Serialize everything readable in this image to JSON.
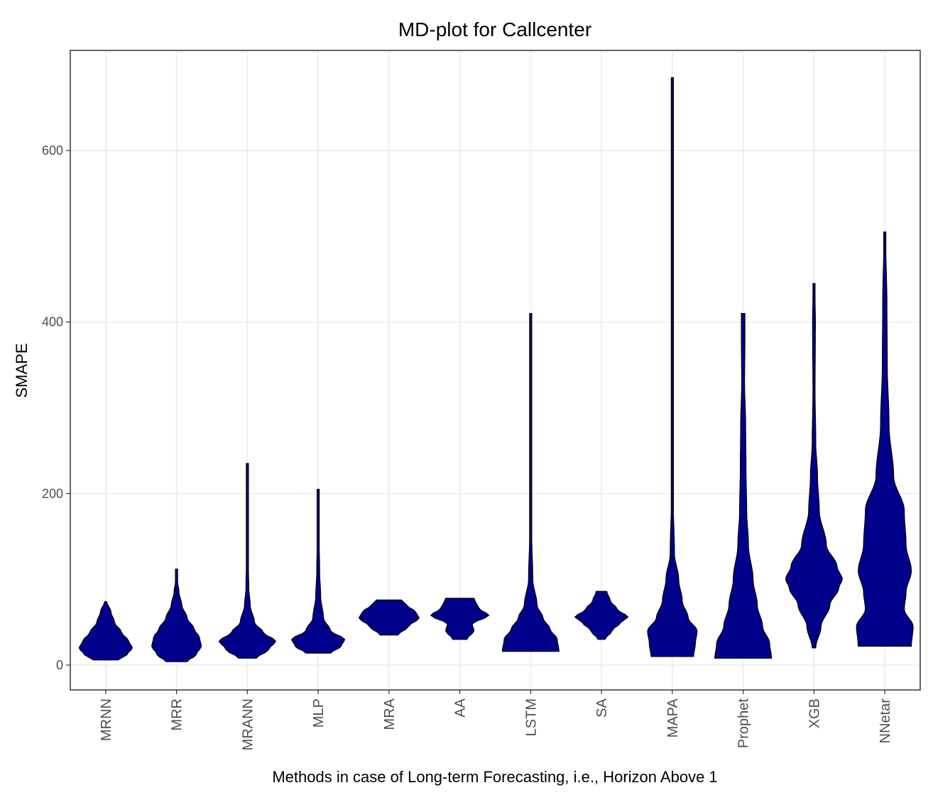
{
  "chart_data": {
    "type": "violin",
    "title": "MD-plot for Callcenter",
    "xlabel": "Methods in case of Long-term Forecasting, i.e., Horizon Above 1",
    "ylabel": "SMAPE",
    "ylim": [
      -30,
      720
    ],
    "yticks": [
      0,
      200,
      400,
      600
    ],
    "grid": true,
    "fill_color": "#00008B",
    "categories": [
      "MRNN",
      "MRR",
      "MRANN",
      "MLP",
      "MRA",
      "AA",
      "LSTM",
      "SA",
      "MAPA",
      "Prophet",
      "XGB",
      "NNetar"
    ],
    "series": [
      {
        "name": "MRNN",
        "min": 6,
        "max": 74,
        "profile": [
          [
            6,
            0.35
          ],
          [
            12,
            0.6
          ],
          [
            20,
            0.75
          ],
          [
            28,
            0.65
          ],
          [
            38,
            0.45
          ],
          [
            50,
            0.25
          ],
          [
            62,
            0.15
          ],
          [
            74,
            0.03
          ]
        ]
      },
      {
        "name": "MRR",
        "min": 4,
        "max": 112,
        "profile": [
          [
            4,
            0.3
          ],
          [
            12,
            0.55
          ],
          [
            22,
            0.7
          ],
          [
            32,
            0.65
          ],
          [
            42,
            0.5
          ],
          [
            55,
            0.3
          ],
          [
            70,
            0.15
          ],
          [
            85,
            0.07
          ],
          [
            100,
            0.02
          ],
          [
            112,
            0.02
          ]
        ]
      },
      {
        "name": "MRANN",
        "min": 8,
        "max": 235,
        "profile": [
          [
            8,
            0.25
          ],
          [
            18,
            0.6
          ],
          [
            28,
            0.8
          ],
          [
            38,
            0.45
          ],
          [
            50,
            0.2
          ],
          [
            70,
            0.08
          ],
          [
            90,
            0.04
          ],
          [
            130,
            0.02
          ],
          [
            180,
            0.015
          ],
          [
            235,
            0.005
          ]
        ]
      },
      {
        "name": "MLP",
        "min": 14,
        "max": 205,
        "profile": [
          [
            14,
            0.35
          ],
          [
            22,
            0.65
          ],
          [
            30,
            0.75
          ],
          [
            40,
            0.35
          ],
          [
            55,
            0.15
          ],
          [
            80,
            0.07
          ],
          [
            110,
            0.04
          ],
          [
            150,
            0.025
          ],
          [
            205,
            0.01
          ]
        ]
      },
      {
        "name": "MRA",
        "min": 35,
        "max": 76,
        "profile": [
          [
            35,
            0.25
          ],
          [
            45,
            0.55
          ],
          [
            55,
            0.85
          ],
          [
            62,
            0.75
          ],
          [
            70,
            0.5
          ],
          [
            76,
            0.35
          ]
        ]
      },
      {
        "name": "AA",
        "min": 30,
        "max": 78,
        "profile": [
          [
            30,
            0.2
          ],
          [
            40,
            0.4
          ],
          [
            48,
            0.35
          ],
          [
            58,
            0.82
          ],
          [
            66,
            0.55
          ],
          [
            73,
            0.45
          ],
          [
            78,
            0.4
          ]
        ]
      },
      {
        "name": "LSTM",
        "min": 16,
        "max": 410,
        "profile": [
          [
            16,
            0.8
          ],
          [
            30,
            0.75
          ],
          [
            42,
            0.55
          ],
          [
            55,
            0.35
          ],
          [
            70,
            0.18
          ],
          [
            100,
            0.06
          ],
          [
            150,
            0.03
          ],
          [
            200,
            0.03
          ],
          [
            260,
            0.02
          ],
          [
            330,
            0.01
          ],
          [
            410,
            0.015
          ]
        ]
      },
      {
        "name": "SA",
        "min": 30,
        "max": 86,
        "profile": [
          [
            30,
            0.1
          ],
          [
            40,
            0.3
          ],
          [
            50,
            0.55
          ],
          [
            56,
            0.75
          ],
          [
            65,
            0.45
          ],
          [
            75,
            0.25
          ],
          [
            86,
            0.15
          ]
        ]
      },
      {
        "name": "MAPA",
        "min": 10,
        "max": 685,
        "profile": [
          [
            10,
            0.6
          ],
          [
            25,
            0.65
          ],
          [
            40,
            0.7
          ],
          [
            55,
            0.45
          ],
          [
            75,
            0.28
          ],
          [
            100,
            0.18
          ],
          [
            130,
            0.06
          ],
          [
            200,
            0.02
          ],
          [
            300,
            0.012
          ],
          [
            450,
            0.008
          ],
          [
            600,
            0.008
          ],
          [
            685,
            0.005
          ]
        ]
      },
      {
        "name": "Prophet",
        "min": 8,
        "max": 410,
        "profile": [
          [
            8,
            0.8
          ],
          [
            25,
            0.75
          ],
          [
            45,
            0.55
          ],
          [
            70,
            0.4
          ],
          [
            100,
            0.28
          ],
          [
            140,
            0.15
          ],
          [
            180,
            0.1
          ],
          [
            230,
            0.08
          ],
          [
            280,
            0.07
          ],
          [
            330,
            0.04
          ],
          [
            380,
            0.05
          ],
          [
            410,
            0.05
          ]
        ]
      },
      {
        "name": "XGB",
        "min": 20,
        "max": 445,
        "profile": [
          [
            20,
            0.05
          ],
          [
            45,
            0.2
          ],
          [
            70,
            0.45
          ],
          [
            90,
            0.7
          ],
          [
            100,
            0.8
          ],
          [
            115,
            0.65
          ],
          [
            140,
            0.35
          ],
          [
            180,
            0.15
          ],
          [
            220,
            0.1
          ],
          [
            260,
            0.05
          ],
          [
            320,
            0.03
          ],
          [
            400,
            0.04
          ],
          [
            445,
            0.02
          ]
        ]
      },
      {
        "name": "NNetar",
        "min": 22,
        "max": 505,
        "profile": [
          [
            22,
            0.75
          ],
          [
            45,
            0.8
          ],
          [
            65,
            0.55
          ],
          [
            85,
            0.6
          ],
          [
            110,
            0.75
          ],
          [
            140,
            0.6
          ],
          [
            180,
            0.55
          ],
          [
            220,
            0.25
          ],
          [
            280,
            0.12
          ],
          [
            350,
            0.07
          ],
          [
            420,
            0.06
          ],
          [
            505,
            0.02
          ]
        ]
      }
    ]
  }
}
